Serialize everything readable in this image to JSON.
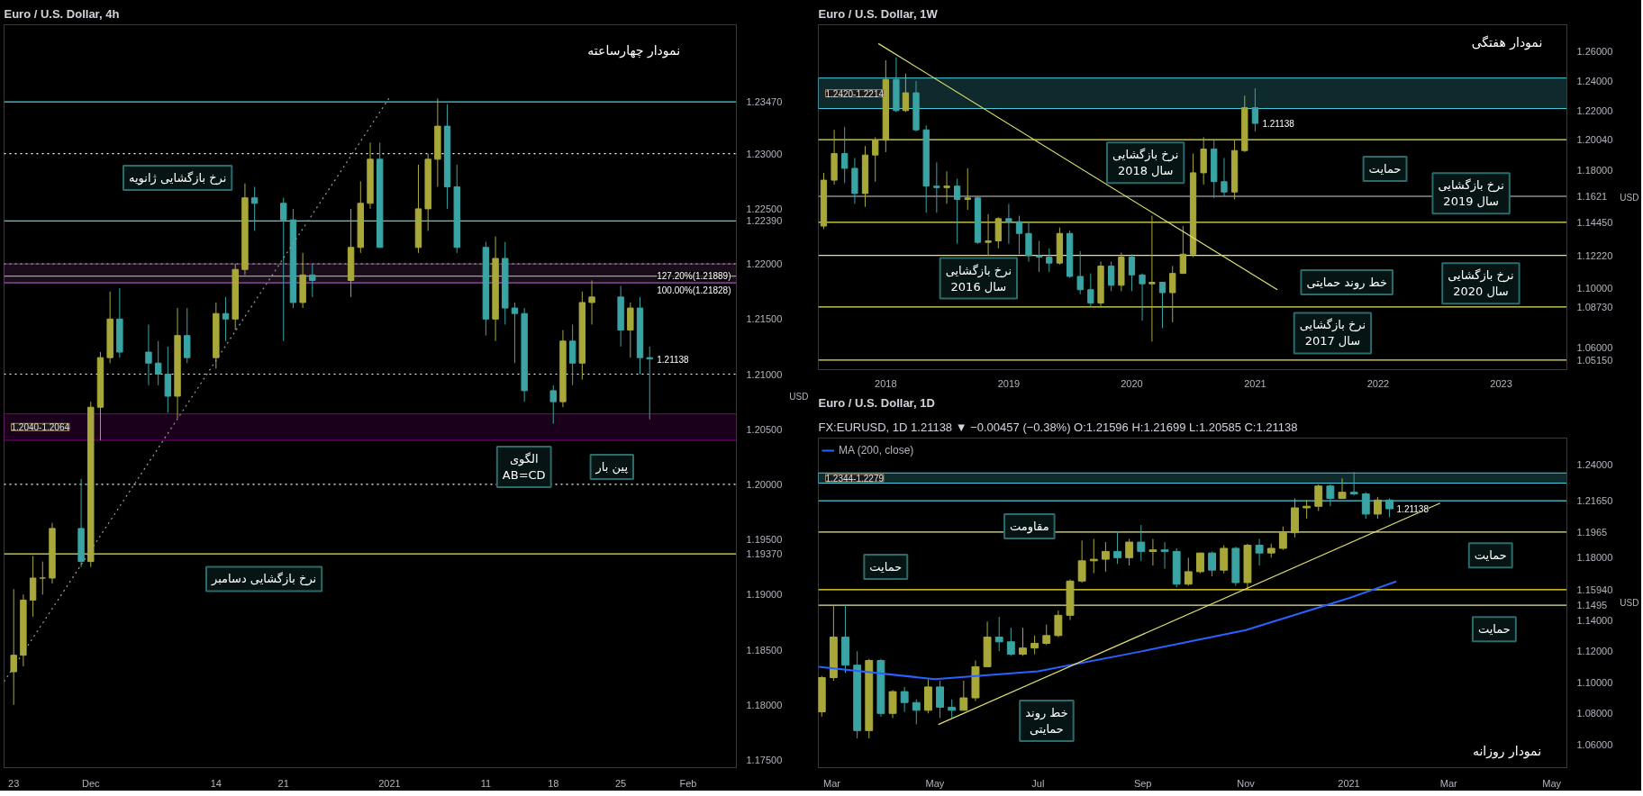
{
  "chart_data": [
    {
      "type": "candlestick",
      "title": "Euro / U.S. Dollar, 4h",
      "ylabel": "USD",
      "grid": false,
      "xlim": [
        "2020-11-22",
        "2021-02-06"
      ],
      "ylim": [
        1.1743,
        1.2417
      ],
      "xticks": [
        {
          "value": "2020-11-23",
          "label": "23"
        },
        {
          "value": "2020-12-01",
          "label": "Dec"
        },
        {
          "value": "2020-12-14",
          "label": "14"
        },
        {
          "value": "2020-12-21",
          "label": "21"
        },
        {
          "value": "2021-01-01",
          "label": "2021"
        },
        {
          "value": "2021-01-11",
          "label": "11"
        },
        {
          "value": "2021-01-18",
          "label": "18"
        },
        {
          "value": "2021-01-25",
          "label": "25"
        },
        {
          "value": "2021-02-01",
          "label": "Feb"
        }
      ],
      "yticks": [
        {
          "value": 1.175,
          "label": "1.17500"
        },
        {
          "value": 1.18,
          "label": "1.18000"
        },
        {
          "value": 1.185,
          "label": "1.18500"
        },
        {
          "value": 1.19,
          "label": "1.19000"
        },
        {
          "value": 1.195,
          "label": "1.19500"
        },
        {
          "value": 1.205,
          "label": "1.20500"
        },
        {
          "value": 1.215,
          "label": "1.21500"
        },
        {
          "value": 1.225,
          "label": "1.22500"
        }
      ],
      "series": [
        {
          "x": [
            "2020-11-23",
            "2020-11-24",
            "2020-11-25",
            "2020-11-26",
            "2020-11-27",
            "2020-11-30",
            "2020-12-01",
            "2020-12-02",
            "2020-12-03",
            "2020-12-04",
            "2020-12-07",
            "2020-12-08",
            "2020-12-09",
            "2020-12-10",
            "2020-12-11",
            "2020-12-14",
            "2020-12-15",
            "2020-12-16",
            "2020-12-17",
            "2020-12-18",
            "2020-12-21",
            "2020-12-22",
            "2020-12-23",
            "2020-12-24",
            "2020-12-28",
            "2020-12-29",
            "2020-12-30",
            "2020-12-31",
            "2021-01-04",
            "2021-01-05",
            "2021-01-06",
            "2021-01-07",
            "2021-01-08",
            "2021-01-11",
            "2021-01-12",
            "2021-01-13",
            "2021-01-14",
            "2021-01-15",
            "2021-01-18",
            "2021-01-19",
            "2021-01-20",
            "2021-01-21",
            "2021-01-22",
            "2021-01-25",
            "2021-01-26",
            "2021-01-27",
            "2021-01-28"
          ],
          "ohlc": [
            [
              1.183,
              1.1905,
              1.18,
              1.1845
            ],
            [
              1.1845,
              1.19,
              1.1835,
              1.1895
            ],
            [
              1.1895,
              1.1935,
              1.188,
              1.1915
            ],
            [
              1.1915,
              1.193,
              1.19,
              1.1915
            ],
            [
              1.1915,
              1.1965,
              1.191,
              1.196
            ],
            [
              1.196,
              1.2005,
              1.1925,
              1.193
            ],
            [
              1.193,
              1.2075,
              1.1925,
              1.207
            ],
            [
              1.207,
              1.212,
              1.204,
              1.2115
            ],
            [
              1.2115,
              1.2175,
              1.211,
              1.215
            ],
            [
              1.215,
              1.2178,
              1.2115,
              1.212
            ],
            [
              1.212,
              1.2145,
              1.209,
              1.211
            ],
            [
              1.211,
              1.213,
              1.209,
              1.21
            ],
            [
              1.21,
              1.2125,
              1.2065,
              1.208
            ],
            [
              1.208,
              1.216,
              1.206,
              1.2135
            ],
            [
              1.2135,
              1.216,
              1.211,
              1.2115
            ],
            [
              1.2115,
              1.2165,
              1.2105,
              1.2155
            ],
            [
              1.2155,
              1.217,
              1.213,
              1.215
            ],
            [
              1.215,
              1.22,
              1.214,
              1.2195
            ],
            [
              1.2195,
              1.2273,
              1.219,
              1.226
            ],
            [
              1.226,
              1.227,
              1.223,
              1.2255
            ],
            [
              1.2255,
              1.226,
              1.213,
              1.224
            ],
            [
              1.224,
              1.225,
              1.216,
              1.2165
            ],
            [
              1.2165,
              1.221,
              1.216,
              1.219
            ],
            [
              1.219,
              1.22,
              1.217,
              1.2185
            ],
            [
              1.2185,
              1.225,
              1.217,
              1.2215
            ],
            [
              1.2215,
              1.2275,
              1.221,
              1.2255
            ],
            [
              1.2255,
              1.231,
              1.225,
              1.2295
            ],
            [
              1.2295,
              1.231,
              1.2215,
              1.2215
            ],
            [
              1.2215,
              1.229,
              1.221,
              1.225
            ],
            [
              1.225,
              1.23,
              1.223,
              1.2295
            ],
            [
              1.2295,
              1.235,
              1.227,
              1.2325
            ],
            [
              1.2325,
              1.2345,
              1.225,
              1.227
            ],
            [
              1.227,
              1.229,
              1.221,
              1.2215
            ],
            [
              1.2215,
              1.222,
              1.2135,
              1.215
            ],
            [
              1.215,
              1.2225,
              1.213,
              1.2205
            ],
            [
              1.2205,
              1.222,
              1.2145,
              1.216
            ],
            [
              1.216,
              1.2165,
              1.211,
              1.2155
            ],
            [
              1.2155,
              1.216,
              1.2075,
              1.2085
            ],
            [
              1.2085,
              1.209,
              1.2055,
              1.2075
            ],
            [
              1.2075,
              1.214,
              1.207,
              1.213
            ],
            [
              1.213,
              1.2145,
              1.209,
              1.211
            ],
            [
              1.211,
              1.2175,
              1.2095,
              1.2165
            ],
            [
              1.2165,
              1.2185,
              1.2145,
              1.217
            ],
            [
              1.217,
              1.218,
              1.2125,
              1.214
            ],
            [
              1.214,
              1.2165,
              1.2115,
              1.216
            ],
            [
              1.216,
              1.217,
              1.21,
              1.2115
            ],
            [
              1.2115,
              1.2125,
              1.2059,
              1.21138
            ]
          ],
          "colors": [
            "#a8a83a",
            "#a8a83a",
            "#a8a83a",
            "#a8a83a",
            "#a8a83a",
            "#3aa3a3",
            "#a8a83a",
            "#a8a83a",
            "#a8a83a",
            "#3aa3a3",
            "#3aa3a3",
            "#3aa3a3",
            "#3aa3a3",
            "#a8a83a",
            "#3aa3a3",
            "#a8a83a",
            "#3aa3a3",
            "#a8a83a",
            "#a8a83a",
            "#3aa3a3",
            "#3aa3a3",
            "#3aa3a3",
            "#a8a83a",
            "#3aa3a3",
            "#a8a83a",
            "#a8a83a",
            "#a8a83a",
            "#3aa3a3",
            "#a8a83a",
            "#a8a83a",
            "#a8a83a",
            "#3aa3a3",
            "#3aa3a3",
            "#3aa3a3",
            "#a8a83a",
            "#3aa3a3",
            "#3aa3a3",
            "#3aa3a3",
            "#3aa3a3",
            "#a8a83a",
            "#3aa3a3",
            "#a8a83a",
            "#a8a83a",
            "#3aa3a3",
            "#a8a83a",
            "#3aa3a3",
            "#3aa3a3"
          ]
        },
        {
          "type": "line",
          "x": [
            "2020-11-22",
            "2021-01-01"
          ],
          "values": [
            1.1821,
            1.2351
          ],
          "color": "#9e9e9e",
          "line_style": "dotted"
        }
      ],
      "ref_lines": [
        {
          "axis": "y",
          "value": 1.2347,
          "label": "1.23470",
          "color": "#4dd0e1",
          "line_style": "solid"
        },
        {
          "axis": "y",
          "value": 1.23,
          "label": "1.23000",
          "color": "#ffffff",
          "line_style": "dotted"
        },
        {
          "axis": "y",
          "value": 1.2239,
          "label": "1.22390",
          "color": "#4dd0e1",
          "line_style": "solid"
        },
        {
          "axis": "y",
          "value": 1.22,
          "label": "1.22000",
          "color": "#ffffff",
          "line_style": "dotted"
        },
        {
          "axis": "y",
          "value": 1.21889,
          "color": "#b0b0b0",
          "line_style": "solid"
        },
        {
          "axis": "y",
          "value": 1.21828,
          "color": "#7e57c2",
          "line_style": "solid"
        },
        {
          "axis": "y",
          "value": 1.21,
          "label": "1.21000",
          "color": "#ffffff",
          "line_style": "dotted"
        },
        {
          "axis": "y",
          "value": 1.2,
          "label": "1.20000",
          "color": "#ffffff",
          "line_style": "dotted"
        },
        {
          "axis": "y",
          "value": 1.1937,
          "label": "1.19370",
          "color": "#e6e65c",
          "line_style": "solid"
        }
      ],
      "bands": [
        {
          "axis": "y",
          "from": 1.204,
          "to": 1.2064,
          "label": "1.2040-1.2064",
          "color": "#800080"
        },
        {
          "axis": "y",
          "from": 1.21828,
          "to": 1.22,
          "color": "#7b3f7b"
        }
      ],
      "annotations": [
        "نمودار چهارساعته",
        "نرخ بازگشایی ژانویه",
        "نرخ بازگشایی دسامبر",
        "الگوی\nAB=CD",
        "پین بار",
        {
          "text": "127.20%(1.21889)",
          "x": "2021-01-28",
          "y": 1.21889
        },
        {
          "text": "100.00%(1.21828)",
          "x": "2021-01-28",
          "y": 1.21828
        },
        {
          "text": "1.21138",
          "x": "2021-01-28",
          "y": 1.21138
        }
      ]
    },
    {
      "type": "candlestick",
      "title": "Euro / U.S. Dollar, 1W",
      "ylabel": "USD",
      "grid": false,
      "xlim": [
        "2017-06-15",
        "2023-07-15"
      ],
      "ylim": [
        1.045,
        1.278
      ],
      "xticks": [
        {
          "value": "2018-01-01",
          "label": "2018"
        },
        {
          "value": "2019-01-01",
          "label": "2019"
        },
        {
          "value": "2020-01-01",
          "label": "2020"
        },
        {
          "value": "2021-01-01",
          "label": "2021"
        },
        {
          "value": "2022-01-01",
          "label": "2022"
        },
        {
          "value": "2023-01-01",
          "label": "2023"
        }
      ],
      "yticks": [
        {
          "value": 1.06,
          "label": "1.06000"
        },
        {
          "value": 1.1,
          "label": "1.10000"
        },
        {
          "value": 1.18,
          "label": "1.18000"
        },
        {
          "value": 1.22,
          "label": "1.22000"
        },
        {
          "value": 1.24,
          "label": "1.24000"
        },
        {
          "value": 1.26,
          "label": "1.26000"
        }
      ],
      "series": [
        {
          "x": [
            "2017-07",
            "2017-08",
            "2017-09",
            "2017-10",
            "2017-11",
            "2017-12",
            "2018-01",
            "2018-02",
            "2018-03",
            "2018-04",
            "2018-05",
            "2018-06",
            "2018-07",
            "2018-08",
            "2018-09",
            "2018-10",
            "2018-11",
            "2018-12",
            "2019-01",
            "2019-02",
            "2019-03",
            "2019-04",
            "2019-05",
            "2019-06",
            "2019-07",
            "2019-08",
            "2019-09",
            "2019-10",
            "2019-11",
            "2019-12",
            "2020-01",
            "2020-02",
            "2020-03",
            "2020-04",
            "2020-05",
            "2020-06",
            "2020-07",
            "2020-08",
            "2020-09",
            "2020-10",
            "2020-11",
            "2020-12",
            "2021-01"
          ],
          "ohlc": [
            [
              1.142,
              1.178,
              1.14,
              1.173
            ],
            [
              1.173,
              1.207,
              1.17,
              1.191
            ],
            [
              1.191,
              1.209,
              1.171,
              1.181
            ],
            [
              1.181,
              1.188,
              1.157,
              1.164
            ],
            [
              1.164,
              1.196,
              1.155,
              1.19
            ],
            [
              1.19,
              1.202,
              1.172,
              1.2
            ],
            [
              1.2,
              1.254,
              1.192,
              1.241
            ],
            [
              1.241,
              1.256,
              1.219,
              1.22
            ],
            [
              1.22,
              1.245,
              1.219,
              1.232
            ],
            [
              1.232,
              1.24,
              1.206,
              1.207
            ],
            [
              1.207,
              1.21,
              1.151,
              1.169
            ],
            [
              1.169,
              1.185,
              1.151,
              1.168
            ],
            [
              1.168,
              1.179,
              1.157,
              1.169
            ],
            [
              1.169,
              1.174,
              1.13,
              1.16
            ],
            [
              1.16,
              1.181,
              1.153,
              1.161
            ],
            [
              1.161,
              1.162,
              1.13,
              1.131
            ],
            [
              1.131,
              1.15,
              1.122,
              1.132
            ],
            [
              1.132,
              1.148,
              1.127,
              1.147
            ],
            [
              1.147,
              1.157,
              1.13,
              1.145
            ],
            [
              1.145,
              1.149,
              1.123,
              1.137
            ],
            [
              1.137,
              1.145,
              1.118,
              1.122
            ],
            [
              1.122,
              1.132,
              1.111,
              1.121
            ],
            [
              1.121,
              1.127,
              1.111,
              1.117
            ],
            [
              1.117,
              1.141,
              1.116,
              1.137
            ],
            [
              1.137,
              1.139,
              1.107,
              1.108
            ],
            [
              1.108,
              1.125,
              1.096,
              1.099
            ],
            [
              1.099,
              1.11,
              1.088,
              1.09
            ],
            [
              1.09,
              1.118,
              1.088,
              1.115
            ],
            [
              1.115,
              1.118,
              1.098,
              1.102
            ],
            [
              1.102,
              1.124,
              1.098,
              1.121
            ],
            [
              1.121,
              1.123,
              1.098,
              1.109
            ],
            [
              1.109,
              1.11,
              1.078,
              1.103
            ],
            [
              1.103,
              1.149,
              1.064,
              1.104
            ],
            [
              1.104,
              1.104,
              1.073,
              1.097
            ],
            [
              1.097,
              1.115,
              1.077,
              1.11
            ],
            [
              1.11,
              1.142,
              1.11,
              1.123
            ],
            [
              1.123,
              1.191,
              1.121,
              1.178
            ],
            [
              1.178,
              1.202,
              1.17,
              1.194
            ],
            [
              1.194,
              1.201,
              1.161,
              1.172
            ],
            [
              1.172,
              1.188,
              1.162,
              1.165
            ],
            [
              1.165,
              1.2,
              1.16,
              1.193
            ],
            [
              1.193,
              1.23,
              1.192,
              1.222
            ],
            [
              1.222,
              1.235,
              1.206,
              1.21138
            ]
          ],
          "colors": [
            "#a8a83a",
            "#a8a83a",
            "#3aa3a3",
            "#3aa3a3",
            "#a8a83a",
            "#a8a83a",
            "#a8a83a",
            "#3aa3a3",
            "#a8a83a",
            "#3aa3a3",
            "#3aa3a3",
            "#3aa3a3",
            "#a8a83a",
            "#3aa3a3",
            "#a8a83a",
            "#3aa3a3",
            "#a8a83a",
            "#a8a83a",
            "#3aa3a3",
            "#3aa3a3",
            "#3aa3a3",
            "#3aa3a3",
            "#3aa3a3",
            "#a8a83a",
            "#3aa3a3",
            "#3aa3a3",
            "#3aa3a3",
            "#a8a83a",
            "#3aa3a3",
            "#a8a83a",
            "#3aa3a3",
            "#3aa3a3",
            "#a8a83a",
            "#3aa3a3",
            "#a8a83a",
            "#a8a83a",
            "#a8a83a",
            "#a8a83a",
            "#3aa3a3",
            "#3aa3a3",
            "#a8a83a",
            "#a8a83a",
            "#3aa3a3"
          ]
        },
        {
          "type": "line",
          "x": [
            "2017-12-10",
            "2021-03-08"
          ],
          "values": [
            1.2653,
            1.099
          ],
          "color": "#e0e070",
          "line_style": "solid"
        }
      ],
      "ref_lines": [
        {
          "axis": "y",
          "value": 1.2004,
          "label": "1.20040",
          "color": "#e6e65c",
          "line_style": "solid"
        },
        {
          "axis": "y",
          "value": 1.1621,
          "label": "1.1621",
          "color": "#d0d0d0",
          "line_style": "solid"
        },
        {
          "axis": "y",
          "value": 1.1445,
          "label": "1.14450",
          "color": "#e6e65c",
          "line_style": "solid"
        },
        {
          "axis": "y",
          "value": 1.1222,
          "label": "1.12220",
          "color": "#e6e65c",
          "line_style": "solid"
        },
        {
          "axis": "y",
          "value": 1.0873,
          "label": "1.08730",
          "color": "#e6e65c",
          "line_style": "solid"
        },
        {
          "axis": "y",
          "value": 1.0515,
          "label": "1.05150",
          "color": "#e6e65c",
          "line_style": "solid"
        }
      ],
      "bands": [
        {
          "axis": "y",
          "from": 1.242,
          "to": 1.2214,
          "label": "1.2420-1.2214",
          "color": "#4dd0e1"
        }
      ],
      "annotations": [
        "نمودار هفتگی",
        "نرخ بازگشایی\nسال 2018",
        "حمایت",
        "نرخ بازگشایی\nسال 2019",
        "نرخ بازگشایی\nسال 2016",
        "خط روند حمایتی",
        "نرخ بازگشایی\nسال 2020",
        "نرخ بازگشایی\nسال 2017",
        {
          "text": "1.21138",
          "x": "2021-01",
          "y": 1.21138
        }
      ]
    },
    {
      "type": "candlestick",
      "title": "Euro / U.S. Dollar, 1D",
      "subtitle": "FX:EURUSD, 1D  1.21138 ▼ −0.00457 (−0.38%)  O:1.21596  H:1.21699  L:1.20585  C:1.21138",
      "ylabel": "USD",
      "grid": false,
      "legend": "top left",
      "xlim": [
        "2020-02-22",
        "2021-05-10"
      ],
      "ylim": [
        1.0452,
        1.2568
      ],
      "xticks": [
        {
          "value": "2020-03-01",
          "label": "Mar"
        },
        {
          "value": "2020-05-01",
          "label": "May"
        },
        {
          "value": "2020-07-01",
          "label": "Jul"
        },
        {
          "value": "2020-09-01",
          "label": "Sep"
        },
        {
          "value": "2020-11-01",
          "label": "Nov"
        },
        {
          "value": "2021-01-01",
          "label": "2021"
        },
        {
          "value": "2021-03-01",
          "label": "Mar"
        },
        {
          "value": "2021-05-01",
          "label": "May"
        }
      ],
      "yticks": [
        {
          "value": 1.06,
          "label": "1.06000"
        },
        {
          "value": 1.08,
          "label": "1.08000"
        },
        {
          "value": 1.1,
          "label": "1.10000"
        },
        {
          "value": 1.12,
          "label": "1.12000"
        },
        {
          "value": 1.14,
          "label": "1.14000"
        },
        {
          "value": 1.18,
          "label": "1.18000"
        },
        {
          "value": 1.24,
          "label": "1.24000"
        }
      ],
      "series": [
        {
          "x": [
            "2020-02-24",
            "2020-03-02",
            "2020-03-09",
            "2020-03-16",
            "2020-03-23",
            "2020-03-30",
            "2020-04-06",
            "2020-04-13",
            "2020-04-20",
            "2020-04-27",
            "2020-05-04",
            "2020-05-11",
            "2020-05-18",
            "2020-05-25",
            "2020-06-01",
            "2020-06-08",
            "2020-06-15",
            "2020-06-22",
            "2020-06-29",
            "2020-07-06",
            "2020-07-13",
            "2020-07-20",
            "2020-07-27",
            "2020-08-03",
            "2020-08-10",
            "2020-08-17",
            "2020-08-24",
            "2020-08-31",
            "2020-09-07",
            "2020-09-14",
            "2020-09-21",
            "2020-09-28",
            "2020-10-05",
            "2020-10-12",
            "2020-10-19",
            "2020-10-26",
            "2020-11-02",
            "2020-11-09",
            "2020-11-16",
            "2020-11-23",
            "2020-11-30",
            "2020-12-07",
            "2020-12-14",
            "2020-12-21",
            "2020-12-28",
            "2021-01-04",
            "2021-01-11",
            "2021-01-18",
            "2021-01-25"
          ],
          "ohlc": [
            [
              1.081,
              1.104,
              1.078,
              1.103
            ],
            [
              1.103,
              1.149,
              1.101,
              1.129
            ],
            [
              1.129,
              1.15,
              1.106,
              1.111
            ],
            [
              1.111,
              1.12,
              1.064,
              1.069
            ],
            [
              1.069,
              1.115,
              1.064,
              1.114
            ],
            [
              1.114,
              1.115,
              1.078,
              1.08
            ],
            [
              1.08,
              1.095,
              1.077,
              1.094
            ],
            [
              1.094,
              1.097,
              1.081,
              1.087
            ],
            [
              1.087,
              1.089,
              1.073,
              1.082
            ],
            [
              1.082,
              1.102,
              1.08,
              1.097
            ],
            [
              1.097,
              1.101,
              1.077,
              1.084
            ],
            [
              1.084,
              1.089,
              1.077,
              1.082
            ],
            [
              1.082,
              1.101,
              1.082,
              1.09
            ],
            [
              1.09,
              1.114,
              1.088,
              1.11
            ],
            [
              1.11,
              1.139,
              1.11,
              1.129
            ],
            [
              1.129,
              1.142,
              1.12,
              1.126
            ],
            [
              1.126,
              1.135,
              1.117,
              1.118
            ],
            [
              1.118,
              1.135,
              1.117,
              1.122
            ],
            [
              1.122,
              1.13,
              1.118,
              1.125
            ],
            [
              1.125,
              1.137,
              1.124,
              1.13
            ],
            [
              1.13,
              1.146,
              1.129,
              1.143
            ],
            [
              1.143,
              1.166,
              1.14,
              1.165
            ],
            [
              1.165,
              1.191,
              1.164,
              1.178
            ],
            [
              1.178,
              1.192,
              1.17,
              1.179
            ],
            [
              1.179,
              1.19,
              1.171,
              1.184
            ],
            [
              1.184,
              1.197,
              1.176,
              1.18
            ],
            [
              1.18,
              1.192,
              1.175,
              1.19
            ],
            [
              1.19,
              1.201,
              1.178,
              1.184
            ],
            [
              1.184,
              1.192,
              1.175,
              1.185
            ],
            [
              1.185,
              1.19,
              1.173,
              1.184
            ],
            [
              1.184,
              1.186,
              1.161,
              1.163
            ],
            [
              1.163,
              1.18,
              1.162,
              1.171
            ],
            [
              1.171,
              1.183,
              1.17,
              1.183
            ],
            [
              1.183,
              1.184,
              1.168,
              1.172
            ],
            [
              1.172,
              1.188,
              1.17,
              1.186
            ],
            [
              1.186,
              1.187,
              1.162,
              1.164
            ],
            [
              1.164,
              1.189,
              1.16,
              1.188
            ],
            [
              1.188,
              1.192,
              1.175,
              1.183
            ],
            [
              1.183,
              1.189,
              1.18,
              1.186
            ],
            [
              1.186,
              1.2,
              1.185,
              1.196
            ],
            [
              1.196,
              1.218,
              1.193,
              1.212
            ],
            [
              1.212,
              1.217,
              1.205,
              1.213
            ],
            [
              1.213,
              1.227,
              1.21,
              1.226
            ],
            [
              1.226,
              1.227,
              1.213,
              1.218
            ],
            [
              1.218,
              1.231,
              1.218,
              1.222
            ],
            [
              1.222,
              1.235,
              1.22,
              1.221
            ],
            [
              1.221,
              1.222,
              1.205,
              1.208
            ],
            [
              1.208,
              1.219,
              1.205,
              1.217
            ],
            [
              1.217,
              1.218,
              1.206,
              1.21138
            ]
          ],
          "colors": [
            "#a8a83a",
            "#a8a83a",
            "#3aa3a3",
            "#3aa3a3",
            "#a8a83a",
            "#3aa3a3",
            "#a8a83a",
            "#3aa3a3",
            "#3aa3a3",
            "#a8a83a",
            "#3aa3a3",
            "#3aa3a3",
            "#a8a83a",
            "#a8a83a",
            "#a8a83a",
            "#3aa3a3",
            "#3aa3a3",
            "#a8a83a",
            "#a8a83a",
            "#a8a83a",
            "#a8a83a",
            "#a8a83a",
            "#a8a83a",
            "#a8a83a",
            "#a8a83a",
            "#3aa3a3",
            "#a8a83a",
            "#3aa3a3",
            "#a8a83a",
            "#3aa3a3",
            "#3aa3a3",
            "#a8a83a",
            "#a8a83a",
            "#3aa3a3",
            "#a8a83a",
            "#3aa3a3",
            "#a8a83a",
            "#3aa3a3",
            "#a8a83a",
            "#a8a83a",
            "#a8a83a",
            "#a8a83a",
            "#a8a83a",
            "#3aa3a3",
            "#a8a83a",
            "#3aa3a3",
            "#3aa3a3",
            "#a8a83a",
            "#3aa3a3"
          ]
        },
        {
          "type": "line",
          "name": "MA (200, close)",
          "x": [
            "2020-02-22",
            "2020-05-01",
            "2020-07-01",
            "2020-09-01",
            "2020-11-01",
            "2021-01-01",
            "2021-01-29"
          ],
          "values": [
            1.11,
            1.102,
            1.107,
            1.12,
            1.1335,
            1.154,
            1.1647
          ],
          "color": "#2962ff",
          "line_style": "solid"
        },
        {
          "type": "line",
          "x": [
            "2020-05-03",
            "2021-02-24"
          ],
          "values": [
            1.0729,
            1.215
          ],
          "color": "#e0e070",
          "line_style": "solid"
        }
      ],
      "ref_lines": [
        {
          "axis": "y",
          "value": 1.2165,
          "label": "1.21650",
          "color": "#4dd0e1",
          "line_style": "solid"
        },
        {
          "axis": "y",
          "value": 1.1965,
          "label": "1.1965",
          "color": "#e6e6a0",
          "line_style": "solid"
        },
        {
          "axis": "y",
          "value": 1.1594,
          "label": "1.15940",
          "color": "#ffeb3b",
          "line_style": "solid"
        },
        {
          "axis": "y",
          "value": 1.1495,
          "label": "1.1495",
          "color": "#e6e6a0",
          "line_style": "solid"
        }
      ],
      "bands": [
        {
          "axis": "y",
          "from": 1.2344,
          "to": 1.2279,
          "label": "1.2344-1.2279",
          "color": "#4dd0e1"
        }
      ],
      "annotations": [
        "نمودار روزانه",
        "مقاومت",
        "حمایت",
        "حمایت",
        "حمایت",
        "خط روند\nحمایتی",
        {
          "text": "1.21138",
          "x": "2021-01-25",
          "y": 1.21138
        }
      ]
    }
  ]
}
